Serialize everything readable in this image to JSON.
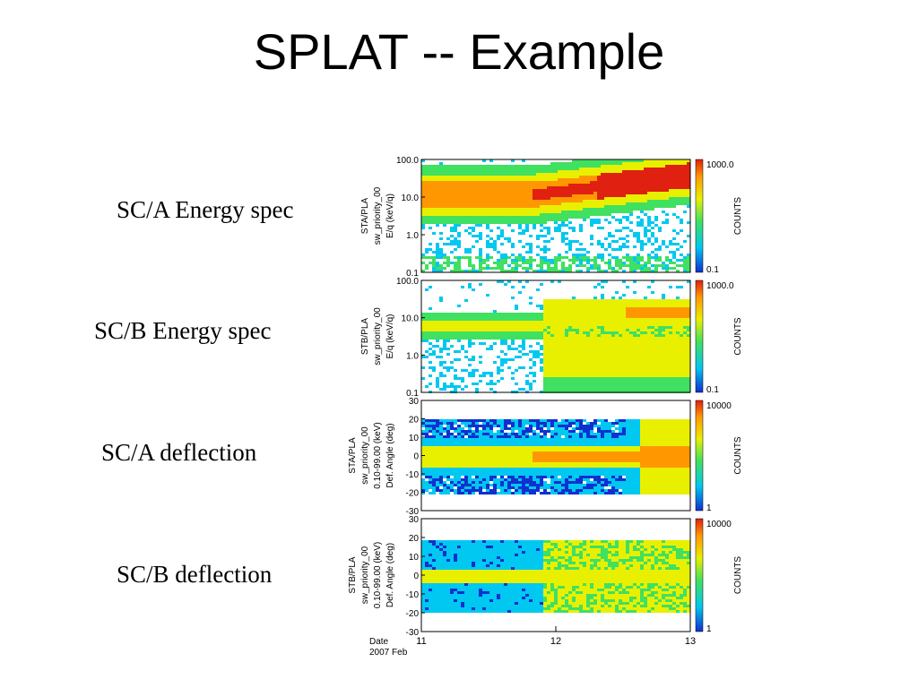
{
  "slide": {
    "title": "SPLAT -- Example"
  },
  "side_labels": [
    "SC/A Energy spec",
    "SC/B Energy spec",
    "SC/A deflection",
    "SC/B deflection"
  ],
  "chart_data": [
    {
      "type": "heatmap",
      "ylabel": [
        "STA/PLA",
        "sw_priority_00",
        "E/q (keV/q)"
      ],
      "yscale": "log",
      "ylim": [
        0.1,
        100.0
      ],
      "yticks": [
        "100.0",
        "10.0",
        "1.0",
        "0.1"
      ],
      "colorbar": {
        "label": "COUNTS",
        "scale": "log",
        "range": [
          0.1,
          1000.0
        ],
        "ticks": [
          "1000.0",
          "0.1"
        ]
      }
    },
    {
      "type": "heatmap",
      "ylabel": [
        "STB/PLA",
        "sw_priority_00",
        "E/q (keV/q)"
      ],
      "yscale": "log",
      "ylim": [
        0.1,
        100.0
      ],
      "yticks": [
        "100.0",
        "10.0",
        "1.0",
        "0.1"
      ],
      "colorbar": {
        "label": "COUNTS",
        "scale": "log",
        "range": [
          0.1,
          1000.0
        ],
        "ticks": [
          "1000.0",
          "0.1"
        ]
      }
    },
    {
      "type": "heatmap",
      "ylabel": [
        "STA/PLA",
        "sw_priority_00",
        "0.10-99.00 (keV)",
        "Def. Angle (deg)"
      ],
      "yscale": "linear",
      "ylim": [
        -30,
        30
      ],
      "yticks": [
        "30",
        "20",
        "10",
        "0",
        "-10",
        "-20",
        "-30"
      ],
      "colorbar": {
        "label": "COUNTS",
        "scale": "log",
        "range": [
          1,
          10000
        ],
        "ticks": [
          "10000",
          "1"
        ]
      }
    },
    {
      "type": "heatmap",
      "ylabel": [
        "STB/PLA",
        "sw_priority_00",
        "0.10-99.00 (keV)",
        "Def. Angle (deg)"
      ],
      "yscale": "linear",
      "ylim": [
        -30,
        30
      ],
      "yticks": [
        "30",
        "20",
        "10",
        "0",
        "-10",
        "-20",
        "-30"
      ],
      "colorbar": {
        "label": "COUNTS",
        "scale": "log",
        "range": [
          1,
          10000
        ],
        "ticks": [
          "10000",
          "1"
        ]
      }
    }
  ],
  "x_axis": {
    "label": [
      "Date",
      "2007 Feb"
    ],
    "ticks": [
      "11",
      "12",
      "13"
    ],
    "range": [
      "2007-02-11",
      "2007-02-13"
    ]
  },
  "colors": {
    "colormap": [
      "#ffffff",
      "#1030d0",
      "#00c8f0",
      "#40e060",
      "#e8f000",
      "#ff9800",
      "#e02010"
    ]
  }
}
